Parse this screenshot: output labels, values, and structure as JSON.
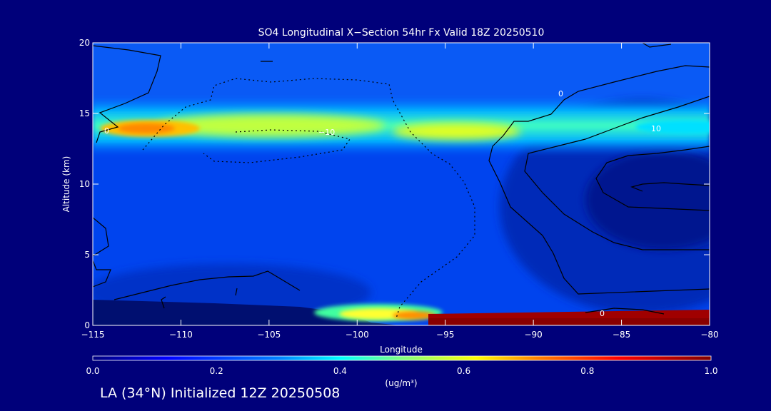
{
  "chart_data": {
    "type": "contour",
    "title": "SO4 Longitudinal X−Section 54hr  Fx Valid 18Z 20250510",
    "xlabel": "Longitude",
    "ylabel": "Altitude (km)",
    "xlim": [
      -115,
      -80
    ],
    "ylim": [
      0,
      20
    ],
    "x_ticks": [
      -115,
      -110,
      -105,
      -100,
      -95,
      -90,
      -85,
      -80
    ],
    "x_tick_labels": [
      "−115",
      "−110",
      "−105",
      "−100",
      "−95",
      "−90",
      "−85",
      "−80"
    ],
    "y_ticks": [
      0,
      5,
      10,
      15,
      20
    ],
    "y_tick_labels": [
      "0",
      "5",
      "10",
      "15",
      "20"
    ],
    "colorbar": {
      "label": "(ug/m³)",
      "range": [
        0.0,
        1.0
      ],
      "ticks": [
        "0.0",
        "0.2",
        "0.4",
        "0.6",
        "0.8",
        "1.0"
      ],
      "colormap": [
        "#00007f",
        "#0000ff",
        "#0080ff",
        "#00ffff",
        "#80ff80",
        "#ffff00",
        "#ff8000",
        "#ff0000",
        "#800000"
      ]
    },
    "features": [
      {
        "name": "upper SO4 layer",
        "lon_range": [
          -115,
          -80
        ],
        "altitude_km": [
          12.5,
          15.5
        ],
        "peak_lon": -113,
        "peak_value": 0.68
      },
      {
        "name": "surface SO4 layer",
        "lon_range": [
          -101,
          -80
        ],
        "altitude_km": [
          0,
          1.2
        ],
        "peak_value": 1.0
      }
    ],
    "contour_labels": [
      "0",
      "−10",
      "10",
      "0",
      "0"
    ],
    "footer": "LA (34°N) Initialized 12Z 20250508"
  }
}
